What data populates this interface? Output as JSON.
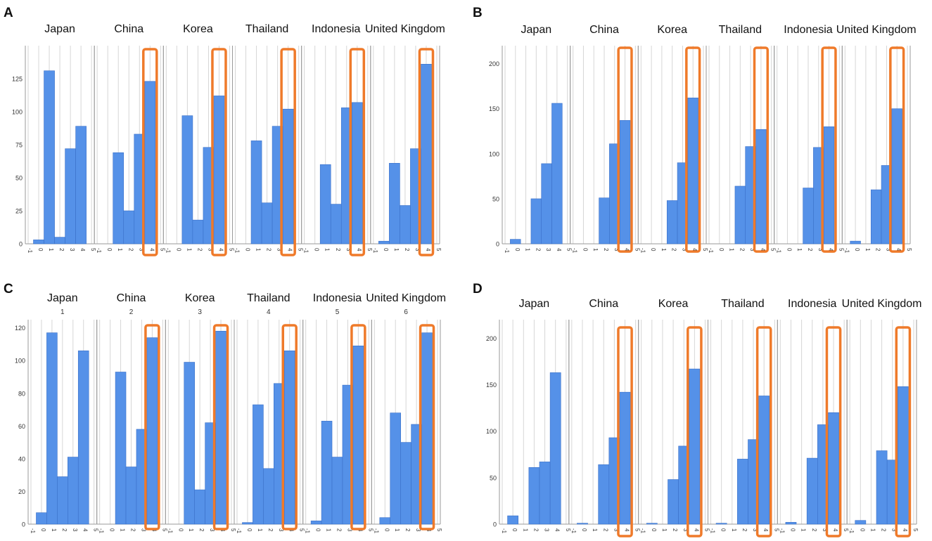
{
  "figure": {
    "colors": {
      "bar": "#5591e8",
      "bar_edge": "#3a70c8",
      "highlight": "#ef7a2a",
      "grid": "#d6d6d6",
      "frame": "#9a9a9a"
    }
  },
  "chart_data": [
    {
      "type": "bar",
      "panel_label": "A",
      "countries": [
        "Japan",
        "China",
        "Korea",
        "Thailand",
        "Indonesia",
        "United Kingdom"
      ],
      "facet_numbers": [],
      "x_ticks": [
        "-1",
        "0",
        "1",
        "2",
        "3",
        "4",
        "5"
      ],
      "categories": [
        0,
        1,
        2,
        3,
        4
      ],
      "ylim": [
        0,
        150
      ],
      "y_ticks": [
        0,
        25,
        50,
        75,
        100,
        125
      ],
      "highlight_category": 4,
      "highlight_facets": [
        "China",
        "Korea",
        "Thailand",
        "Indonesia",
        "United Kingdom"
      ],
      "series": [
        {
          "name": "Japan",
          "values": [
            3,
            131,
            5,
            72,
            89
          ]
        },
        {
          "name": "China",
          "values": [
            0,
            69,
            25,
            83,
            123
          ]
        },
        {
          "name": "Korea",
          "values": [
            0,
            97,
            18,
            73,
            112
          ]
        },
        {
          "name": "Thailand",
          "values": [
            0,
            78,
            31,
            89,
            102
          ]
        },
        {
          "name": "Indonesia",
          "values": [
            0,
            60,
            30,
            103,
            107
          ]
        },
        {
          "name": "United Kingdom",
          "values": [
            2,
            61,
            29,
            72,
            136
          ]
        }
      ]
    },
    {
      "type": "bar",
      "panel_label": "B",
      "countries": [
        "Japan",
        "China",
        "Korea",
        "Thailand",
        "Indonesia",
        "United Kingdom"
      ],
      "facet_numbers": [],
      "x_ticks": [
        "-1",
        "0",
        "1",
        "2",
        "3",
        "4",
        "5"
      ],
      "categories": [
        0,
        1,
        2,
        3,
        4
      ],
      "ylim": [
        0,
        220
      ],
      "y_ticks": [
        0,
        50,
        100,
        150,
        200
      ],
      "highlight_category": 4,
      "highlight_facets": [
        "China",
        "Korea",
        "Thailand",
        "Indonesia",
        "United Kingdom"
      ],
      "series": [
        {
          "name": "Japan",
          "values": [
            5,
            0,
            50,
            89,
            156
          ]
        },
        {
          "name": "China",
          "values": [
            0,
            0,
            51,
            111,
            137
          ]
        },
        {
          "name": "Korea",
          "values": [
            0,
            0,
            48,
            90,
            162
          ]
        },
        {
          "name": "Thailand",
          "values": [
            0,
            0,
            64,
            108,
            127
          ]
        },
        {
          "name": "Indonesia",
          "values": [
            0,
            0,
            62,
            107,
            130
          ]
        },
        {
          "name": "United Kingdom",
          "values": [
            3,
            0,
            60,
            87,
            150
          ]
        }
      ]
    },
    {
      "type": "bar",
      "panel_label": "C",
      "countries": [
        "Japan",
        "China",
        "Korea",
        "Thailand",
        "Indonesia",
        "United Kingdom"
      ],
      "facet_numbers": [
        "1",
        "2",
        "3",
        "4",
        "5",
        "6"
      ],
      "x_ticks": [
        "-1",
        "0",
        "1",
        "2",
        "3",
        "4",
        "5"
      ],
      "categories": [
        0,
        1,
        2,
        3,
        4
      ],
      "ylim": [
        0,
        125
      ],
      "y_ticks": [
        0,
        20,
        40,
        60,
        80,
        100,
        120
      ],
      "highlight_category": 4,
      "highlight_facets": [
        "China",
        "Korea",
        "Thailand",
        "Indonesia",
        "United Kingdom"
      ],
      "series": [
        {
          "name": "Japan",
          "values": [
            7,
            117,
            29,
            41,
            106
          ]
        },
        {
          "name": "China",
          "values": [
            0,
            93,
            35,
            58,
            114
          ]
        },
        {
          "name": "Korea",
          "values": [
            0,
            99,
            21,
            62,
            118
          ]
        },
        {
          "name": "Thailand",
          "values": [
            1,
            73,
            34,
            86,
            106
          ]
        },
        {
          "name": "Indonesia",
          "values": [
            2,
            63,
            41,
            85,
            109
          ]
        },
        {
          "name": "United Kingdom",
          "values": [
            4,
            68,
            50,
            61,
            117
          ]
        }
      ]
    },
    {
      "type": "bar",
      "panel_label": "D",
      "countries": [
        "Japan",
        "China",
        "Korea",
        "Thailand",
        "Indonesia",
        "United Kingdom"
      ],
      "facet_numbers": [],
      "x_ticks": [
        "-1",
        "0",
        "1",
        "2",
        "3",
        "4",
        "5"
      ],
      "categories": [
        0,
        1,
        2,
        3,
        4
      ],
      "ylim": [
        0,
        220
      ],
      "y_ticks": [
        0,
        50,
        100,
        150,
        200
      ],
      "highlight_category": 4,
      "highlight_facets": [
        "China",
        "Korea",
        "Thailand",
        "Indonesia",
        "United Kingdom"
      ],
      "series": [
        {
          "name": "Japan",
          "values": [
            9,
            0,
            61,
            67,
            163
          ]
        },
        {
          "name": "China",
          "values": [
            1,
            0,
            64,
            93,
            142
          ]
        },
        {
          "name": "Korea",
          "values": [
            1,
            0,
            48,
            84,
            167
          ]
        },
        {
          "name": "Thailand",
          "values": [
            1,
            0,
            70,
            91,
            138
          ]
        },
        {
          "name": "Indonesia",
          "values": [
            2,
            0,
            71,
            107,
            120
          ]
        },
        {
          "name": "United Kingdom",
          "values": [
            4,
            0,
            79,
            69,
            148
          ]
        }
      ]
    }
  ]
}
